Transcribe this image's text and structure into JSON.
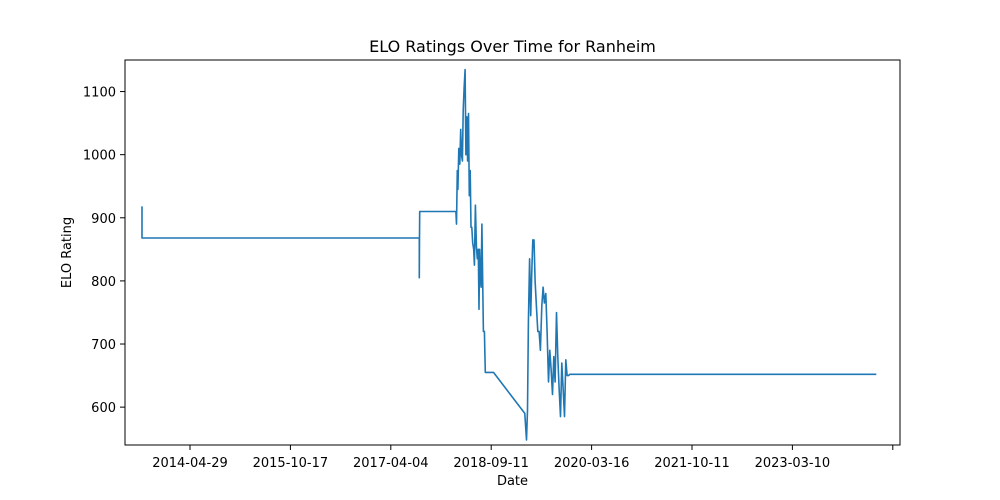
{
  "chart_data": {
    "type": "line",
    "title": "ELO Ratings Over Time for Ranheim",
    "xlabel": "Date",
    "ylabel": "ELO Rating",
    "x_tick_labels": [
      "2014-04-29",
      "2015-10-17",
      "2017-04-04",
      "2018-09-11",
      "2020-03-16",
      "2021-10-11",
      "2023-03-10",
      ""
    ],
    "y_tick_labels": [
      "600",
      "700",
      "800",
      "900",
      "1000",
      "1100"
    ],
    "y_ticks": [
      600,
      700,
      800,
      900,
      1000,
      1100
    ],
    "xlim": [
      "2013-08-04",
      "2024-09-18"
    ],
    "ylim": [
      540,
      1150
    ],
    "grid": false,
    "color": "#1f77b4",
    "series": [
      {
        "x": [
          "2013-11-01",
          "2013-11-01",
          "2013-11-08",
          "2017-10-25",
          "2017-10-25",
          "2017-10-26",
          "2017-10-27",
          "2018-05-01",
          "2018-05-05",
          "2018-05-08",
          "2018-05-12",
          "2018-05-15",
          "2018-05-20",
          "2018-05-25",
          "2018-05-30",
          "2018-06-03",
          "2018-06-08",
          "2018-06-12",
          "2018-06-17",
          "2018-06-22",
          "2018-06-26",
          "2018-07-01",
          "2018-07-05",
          "2018-07-10",
          "2018-07-14",
          "2018-07-19",
          "2018-07-23",
          "2018-07-27",
          "2018-08-01",
          "2018-08-06",
          "2018-08-10",
          "2018-08-15",
          "2018-08-20",
          "2018-08-25",
          "2018-08-30",
          "2018-09-03",
          "2018-09-06",
          "2018-09-10",
          "2018-09-14",
          "2018-09-18",
          "2018-09-22",
          "2018-09-26",
          "2018-10-01",
          "2018-10-06",
          "2018-10-11",
          "2018-10-16",
          "2018-10-21",
          "2018-10-26",
          "2018-10-31",
          "2018-11-05",
          "2018-11-10",
          "2018-11-18",
          "2019-05-01",
          "2019-05-05",
          "2019-05-10",
          "2019-05-15",
          "2019-05-20",
          "2019-05-26",
          "2019-06-01",
          "2019-06-06",
          "2019-06-12",
          "2019-06-18",
          "2019-06-24",
          "2019-07-01",
          "2019-07-08",
          "2019-07-15",
          "2019-07-22",
          "2019-07-29",
          "2019-08-05",
          "2019-08-12",
          "2019-08-19",
          "2019-08-26",
          "2019-09-02",
          "2019-09-09",
          "2019-09-16",
          "2019-09-23",
          "2019-09-30",
          "2019-10-07",
          "2019-10-14",
          "2019-10-21",
          "2019-10-28",
          "2019-11-04",
          "2019-11-11",
          "2019-11-18",
          "2019-11-25",
          "2019-12-02",
          "2019-12-09",
          "2019-12-16",
          "2019-12-23",
          "2019-12-30",
          "2020-01-06",
          "2020-01-13",
          "2020-01-20",
          "2020-01-27",
          "2020-02-03",
          "2020-02-10",
          "2024-05-17"
        ],
        "y": [
          918,
          868,
          868,
          868,
          805,
          868,
          910,
          910,
          910,
          890,
          975,
          945,
          1010,
          985,
          1040,
          1000,
          990,
          1070,
          1105,
          1135,
          1000,
          1060,
          990,
          1065,
          935,
          975,
          885,
          885,
          860,
          850,
          825,
          920,
          855,
          835,
          850,
          755,
          850,
          805,
          790,
          890,
          810,
          720,
          720,
          655,
          655,
          655,
          655,
          655,
          655,
          655,
          655,
          655,
          590,
          570,
          548,
          595,
          735,
          835,
          745,
          810,
          865,
          865,
          800,
          760,
          720,
          720,
          690,
          760,
          790,
          765,
          780,
          720,
          640,
          690,
          660,
          620,
          680,
          640,
          750,
          680,
          630,
          585,
          670,
          630,
          585,
          675,
          650,
          650,
          652,
          652,
          652,
          652,
          652,
          652,
          652,
          652,
          652
        ]
      }
    ]
  }
}
